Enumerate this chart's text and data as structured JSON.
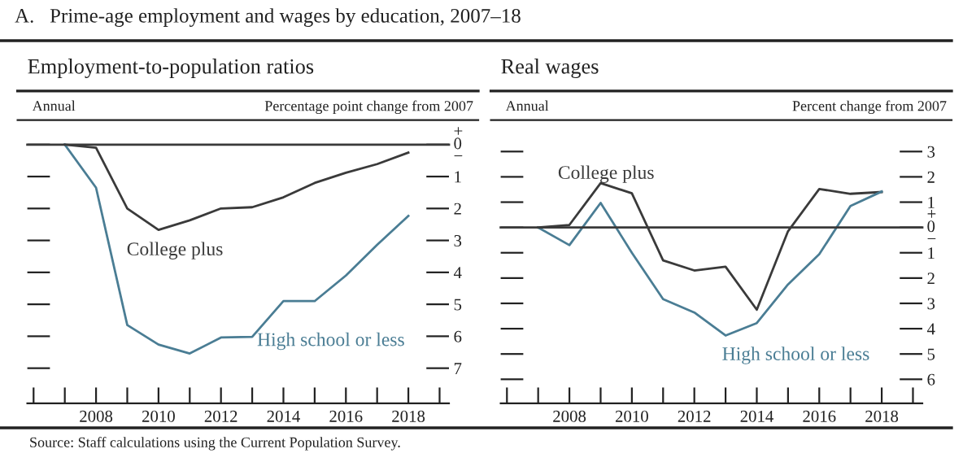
{
  "chart_data": [
    {
      "type": "line",
      "title": "Employment-to-population ratios",
      "subtitle": "Annual",
      "ylabel": "Percentage point change from 2007",
      "annotations": [
        "A.   Prime-age employment and wages by education, 2007–18",
        "Source: Staff calculations using the Current Population Survey."
      ],
      "x": [
        2007,
        2008,
        2009,
        2010,
        2011,
        2012,
        2013,
        2014,
        2015,
        2016,
        2017,
        2018
      ],
      "series": [
        {
          "name": "College plus",
          "color": "#3a3a3a",
          "values": [
            0,
            -0.1,
            -2.0,
            -2.67,
            -2.37,
            -2.0,
            -1.96,
            -1.65,
            -1.2,
            -0.88,
            -0.61,
            -0.25
          ]
        },
        {
          "name": "High school or less",
          "color": "#4a7d94",
          "values": [
            0,
            -1.35,
            -5.65,
            -6.26,
            -6.54,
            -6.04,
            -6.02,
            -4.9,
            -4.9,
            -4.1,
            -3.14,
            -2.23
          ]
        }
      ],
      "xlim": [
        2005.8,
        2019.3
      ],
      "xticks": [
        {
          "value": 2006,
          "label": null
        },
        {
          "value": 2007,
          "label": null
        },
        2008,
        {
          "value": 2009,
          "label": null
        },
        2010,
        {
          "value": 2011,
          "label": null
        },
        2012,
        {
          "value": 2013,
          "label": null
        },
        2014,
        {
          "value": 2015,
          "label": null
        },
        2016,
        {
          "value": 2017,
          "label": null
        },
        2018,
        {
          "value": 2019,
          "label": null
        }
      ],
      "ylim": [
        -8.1,
        0
      ],
      "yticks": [
        {
          "value": 0,
          "label": "+\n0\n−"
        },
        {
          "value": -1,
          "label": "1"
        },
        {
          "value": -2,
          "label": "2"
        },
        {
          "value": -3,
          "label": "3"
        },
        {
          "value": -4,
          "label": "4"
        },
        {
          "value": -5,
          "label": "5"
        },
        {
          "value": -6,
          "label": "6"
        },
        {
          "value": -7,
          "label": "7"
        }
      ],
      "ref_lines": [
        {
          "axis": "y",
          "value": 0,
          "color": "#3a3a3a"
        }
      ],
      "grid": false,
      "legend": false,
      "marker": "none",
      "line_style": "solid"
    },
    {
      "type": "line",
      "title": "Real wages",
      "subtitle": "Annual",
      "ylabel": "Percent change from 2007",
      "x": [
        2007,
        2008,
        2009,
        2010,
        2011,
        2012,
        2013,
        2014,
        2015,
        2016,
        2017,
        2018
      ],
      "series": [
        {
          "name": "College plus",
          "color": "#3a3a3a",
          "values": [
            0,
            0.1,
            1.75,
            1.35,
            -1.3,
            -1.7,
            -1.55,
            -3.25,
            -0.15,
            1.52,
            1.33,
            1.4
          ]
        },
        {
          "name": "High school or less",
          "color": "#4a7d94",
          "values": [
            0,
            -0.7,
            0.97,
            -1.0,
            -2.83,
            -3.36,
            -4.27,
            -3.78,
            -2.25,
            -1.06,
            0.85,
            1.42
          ]
        }
      ],
      "xlim": [
        2005.8,
        2019.3
      ],
      "xticks": [
        {
          "value": 2006,
          "label": null
        },
        {
          "value": 2007,
          "label": null
        },
        2008,
        {
          "value": 2009,
          "label": null
        },
        2010,
        {
          "value": 2011,
          "label": null
        },
        2012,
        {
          "value": 2013,
          "label": null
        },
        2014,
        {
          "value": 2015,
          "label": null
        },
        2016,
        {
          "value": 2017,
          "label": null
        },
        2018,
        {
          "value": 2019,
          "label": null
        }
      ],
      "ylim": [
        -6.95,
        3
      ],
      "yticks": [
        3,
        2,
        1,
        {
          "value": 0,
          "label": "+\n0\n−"
        },
        {
          "value": -1,
          "label": "1"
        },
        {
          "value": -2,
          "label": "2"
        },
        {
          "value": -3,
          "label": "3"
        },
        {
          "value": -4,
          "label": "4"
        },
        {
          "value": -5,
          "label": "5"
        },
        {
          "value": -6,
          "label": "6"
        }
      ],
      "ref_lines": [
        {
          "axis": "y",
          "value": 0,
          "color": "#3a3a3a"
        }
      ],
      "grid": false,
      "legend": false,
      "marker": "none",
      "line_style": "solid"
    }
  ]
}
